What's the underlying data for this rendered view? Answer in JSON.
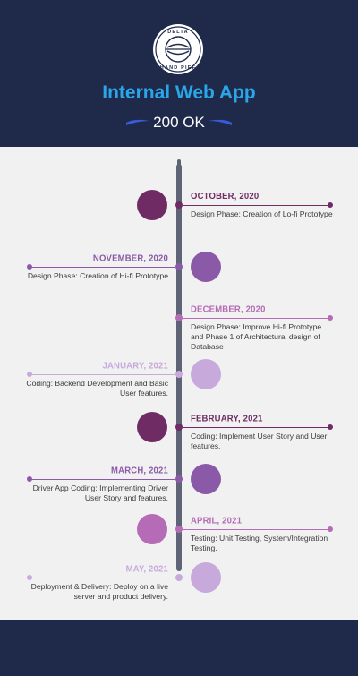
{
  "header": {
    "logo_top_text": "DELTA",
    "logo_bottom_text": "HAND PIEF",
    "title": "Internal Web App",
    "status": "200 OK"
  },
  "colors": {
    "navy": "#1f2a4b",
    "title_blue": "#2aa6e8",
    "swoosh_blue": "#3a5bd9",
    "dark_plum": "#6f2c64",
    "medium_purple": "#8a5aa8",
    "light_lavender": "#c8a9dc",
    "orchid": "#b56bb6"
  },
  "timeline": [
    {
      "date": "OCTOBER, 2020",
      "text": "Design Phase: Creation of Lo-fi Prototype",
      "side": "right",
      "color": "#6f2c64",
      "date_color": "#6f2c64"
    },
    {
      "date": "NOVEMBER, 2020",
      "text": "Design Phase: Creation of Hi-fi Prototype",
      "side": "left",
      "color": "#8a5aa8",
      "date_color": "#8a5aa8"
    },
    {
      "date": "DECEMBER, 2020",
      "text": "Design Phase: Improve Hi-fi Prototype and Phase 1 of Architectural design of Database",
      "side": "right",
      "color": "#b56bb6",
      "date_color": "#b56bb6"
    },
    {
      "date": "JANUARY, 2021",
      "text": "Coding: Backend Development and Basic User features.",
      "side": "left",
      "color": "#c8a9dc",
      "date_color": "#c8a9dc"
    },
    {
      "date": "FEBRUARY, 2021",
      "text": "Coding: Implement User Story and User features.",
      "side": "right",
      "color": "#6f2c64",
      "date_color": "#6f2c64"
    },
    {
      "date": "MARCH, 2021",
      "text": "Driver App Coding:  Implementing Driver User Story and features.",
      "side": "left",
      "color": "#8a5aa8",
      "date_color": "#8a5aa8"
    },
    {
      "date": "APRIL, 2021",
      "text": "Testing: Unit Testing, System/Integration Testing.",
      "side": "right",
      "color": "#b56bb6",
      "date_color": "#b56bb6"
    },
    {
      "date": "MAY, 2021",
      "text": "Deployment & Delivery: Deploy on a live server and product delivery.",
      "side": "left",
      "color": "#c8a9dc",
      "date_color": "#c8a9dc"
    }
  ]
}
